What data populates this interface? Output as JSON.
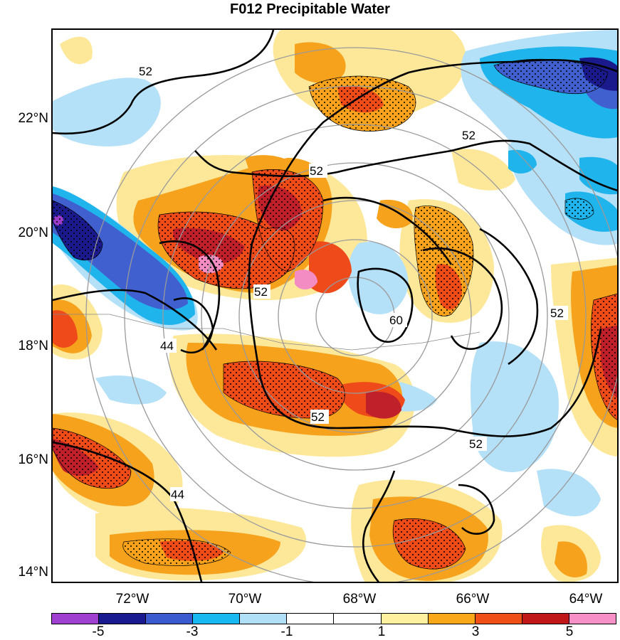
{
  "title": "F012 Precipitable Water",
  "lat_labels": [
    "22°N",
    "20°N",
    "18°N",
    "16°N",
    "14°N"
  ],
  "lon_labels": [
    "72°W",
    "70°W",
    "68°W",
    "66°W",
    "64°W"
  ],
  "contour_labels": [
    "52",
    "52",
    "52",
    "52",
    "52",
    "52",
    "60",
    "44",
    "44",
    "52"
  ],
  "colorbar": {
    "colors": [
      "#a040d0",
      "#1a1a90",
      "#3a5ad0",
      "#18b8f0",
      "#b0e0f8",
      "#ffffff",
      "#ffffff",
      "#fff0a0",
      "#f8a818",
      "#f05018",
      "#c01818",
      "#f890c8"
    ],
    "labels": [
      "-5",
      "-3",
      "-1",
      "1",
      "3",
      "5"
    ]
  },
  "colors": {
    "light_yellow": "#fde89a",
    "orange": "#f6a21c",
    "red_orange": "#ee4a1a",
    "dark_red": "#c0202a",
    "pink": "#f48cc4",
    "light_blue": "#b4e0f8",
    "cyan": "#20b4ec",
    "mid_blue": "#4060d0",
    "navy": "#1a1a8c",
    "purple": "#9a3cc8"
  }
}
